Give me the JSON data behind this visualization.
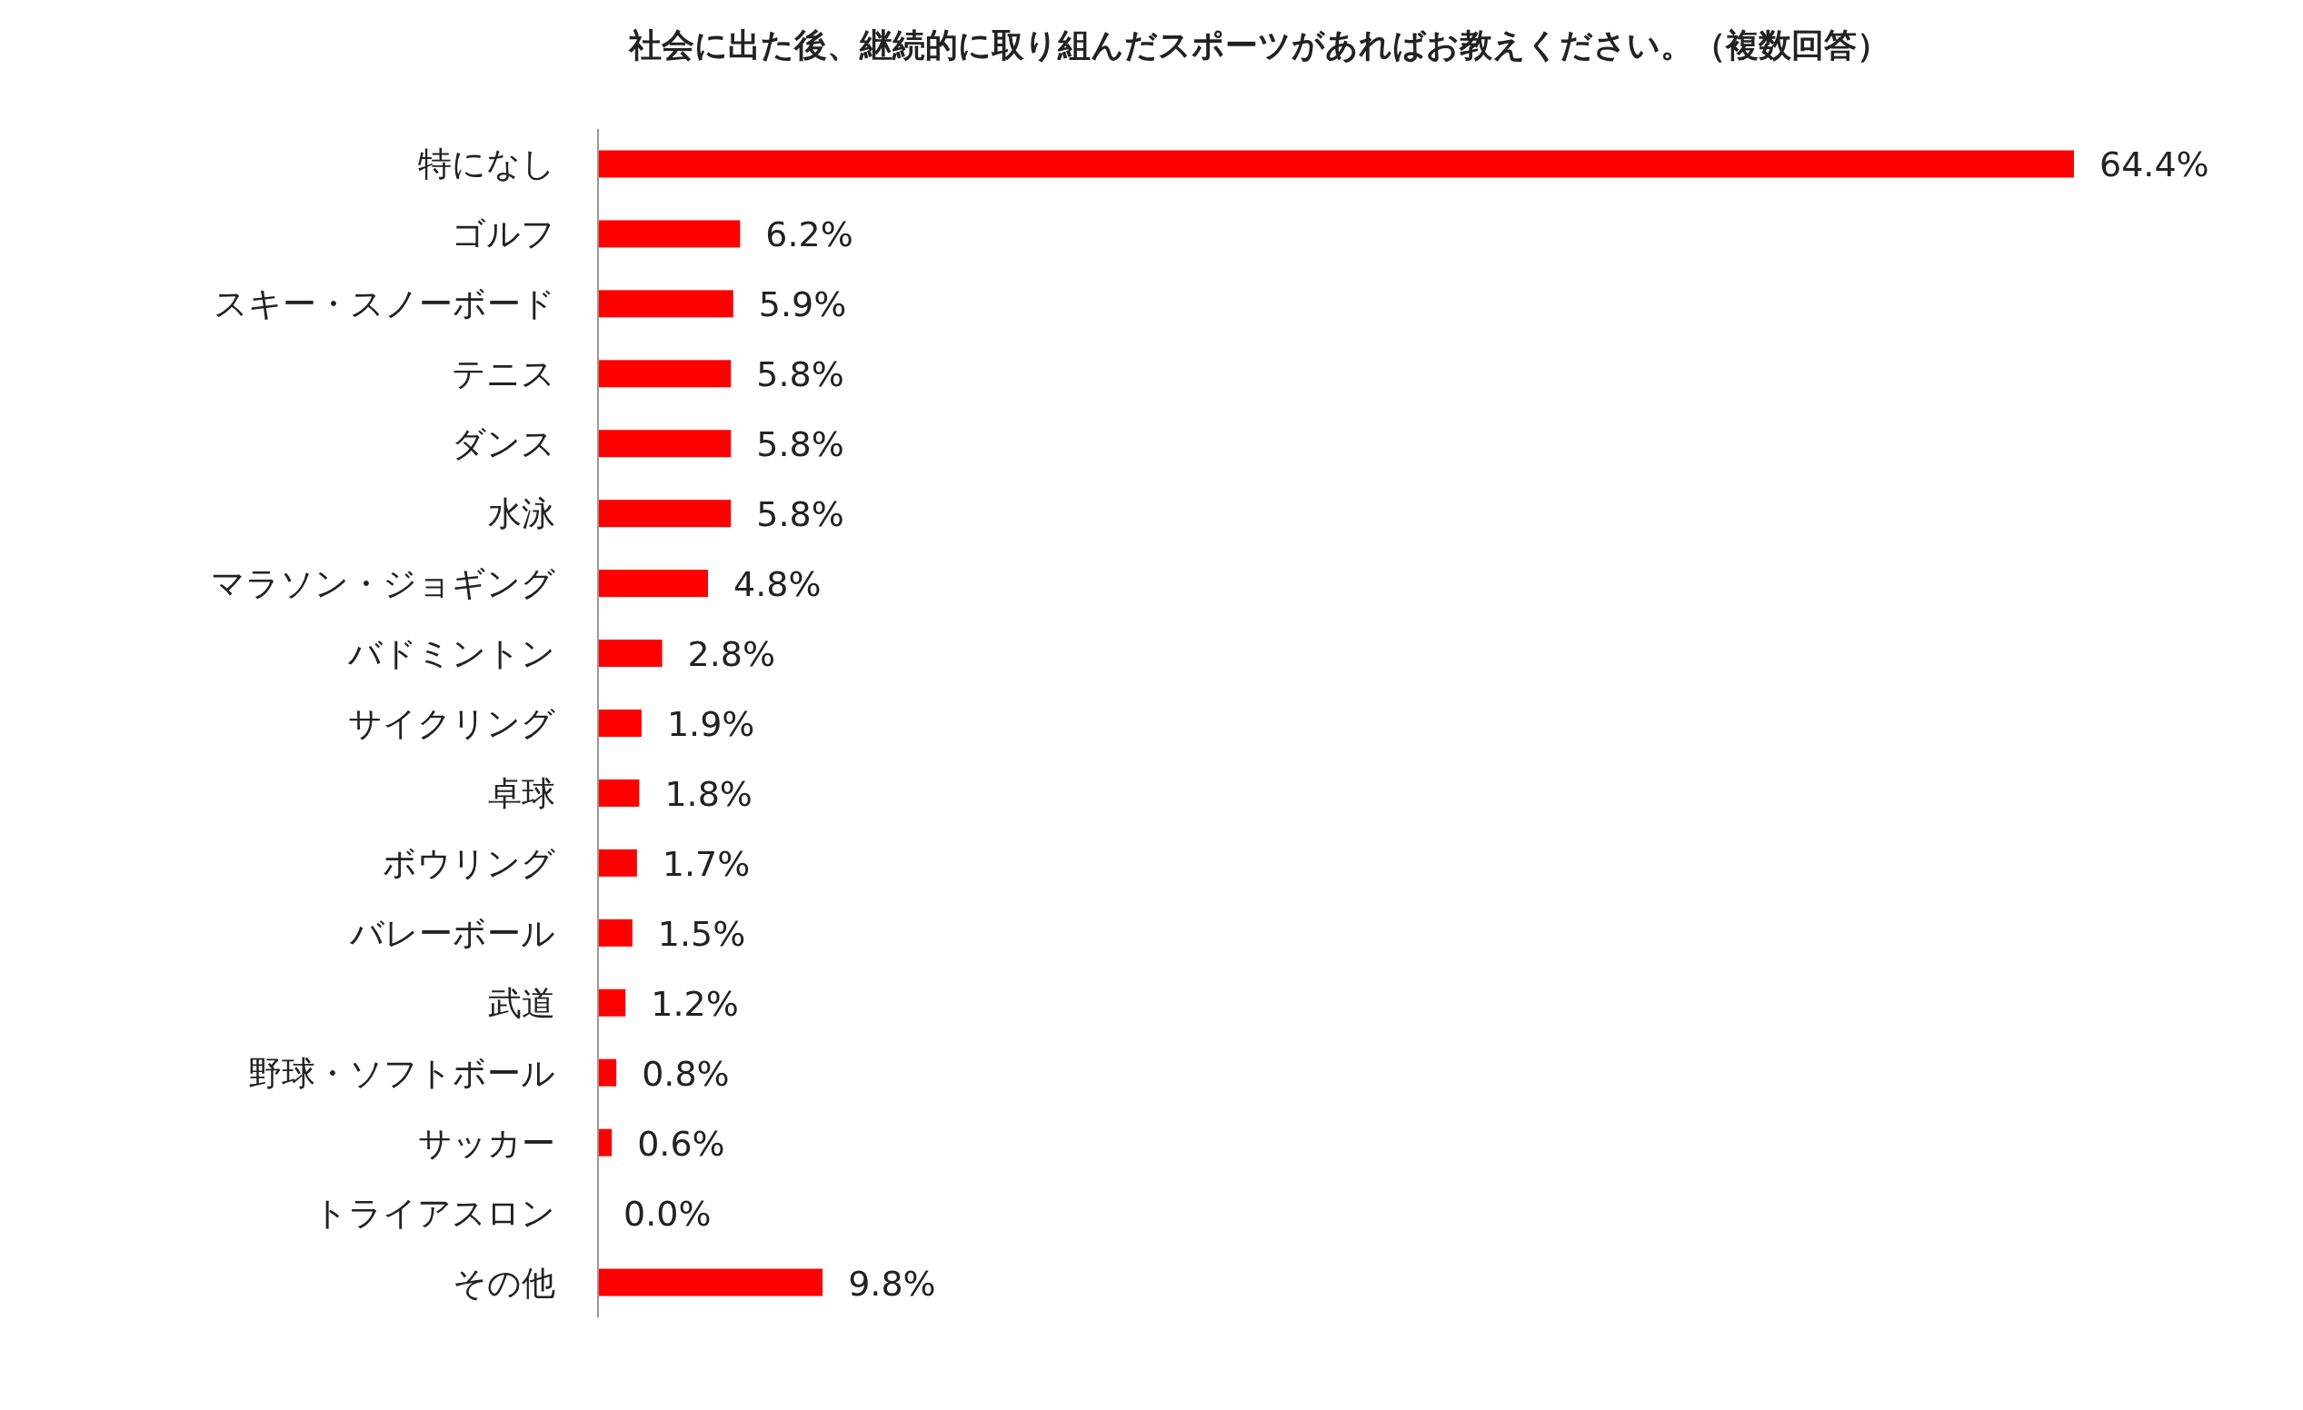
{
  "chart_data": {
    "type": "bar",
    "orientation": "horizontal",
    "title": "社会に出た後、継続的に取り組んだスポーツがあればお教えください。（複数回答）",
    "categories": [
      "特になし",
      "ゴルフ",
      "スキー・スノーボード",
      "テニス",
      "ダンス",
      "水泳",
      "マラソン・ジョギング",
      "バドミントン",
      "サイクリング",
      "卓球",
      "ボウリング",
      "バレーボール",
      "武道",
      "野球・ソフトボール",
      "サッカー",
      "トライアスロン",
      "その他"
    ],
    "values": [
      64.4,
      6.2,
      5.9,
      5.8,
      5.8,
      5.8,
      4.8,
      2.8,
      1.9,
      1.8,
      1.7,
      1.5,
      1.2,
      0.8,
      0.6,
      0.0,
      9.8
    ],
    "value_labels": [
      "64.4%",
      "6.2%",
      "5.9%",
      "5.8%",
      "5.8%",
      "5.8%",
      "4.8%",
      "2.8%",
      "1.9%",
      "1.8%",
      "1.7%",
      "1.5%",
      "1.2%",
      "0.8%",
      "0.6%",
      "0.0%",
      "9.8%"
    ],
    "color": "#ff0000"
  }
}
